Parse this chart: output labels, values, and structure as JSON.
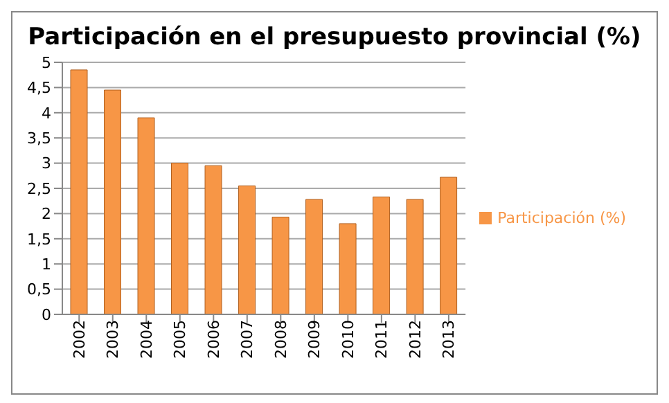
{
  "chart_data": {
    "type": "bar",
    "title": "Participación en el presupuesto provincial (%)",
    "categories": [
      "2002",
      "2003",
      "2004",
      "2005",
      "2006",
      "2007",
      "2008",
      "2009",
      "2010",
      "2011",
      "2012",
      "2013"
    ],
    "series": [
      {
        "name": "Participación (%)",
        "color": "#f79646",
        "values": [
          4.85,
          4.45,
          3.9,
          3.0,
          2.95,
          2.55,
          1.93,
          2.28,
          1.8,
          2.33,
          2.28,
          2.72
        ]
      }
    ],
    "ylim": [
      0,
      5
    ],
    "yticks": [
      0,
      {
        "value": 0.5,
        "label": "0,5"
      },
      1,
      {
        "value": 1.5,
        "label": "1,5"
      },
      2,
      {
        "value": 2.5,
        "label": "2,5"
      },
      3,
      {
        "value": 3.5,
        "label": "3,5"
      },
      4,
      {
        "value": 4.5,
        "label": "4,5"
      },
      5
    ],
    "grid": "y",
    "legend": "right"
  }
}
